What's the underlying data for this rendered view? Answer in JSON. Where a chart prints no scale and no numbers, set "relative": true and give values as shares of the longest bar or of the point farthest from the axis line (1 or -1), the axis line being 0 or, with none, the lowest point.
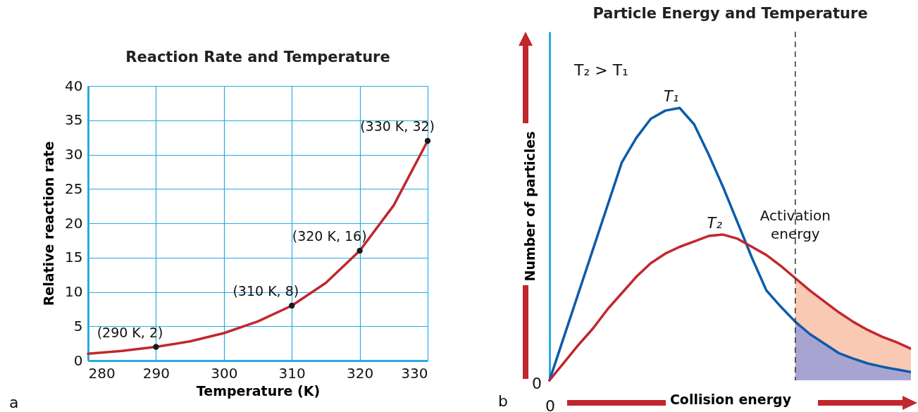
{
  "chart_data": [
    {
      "type": "line",
      "title": "Reaction Rate and Temperature",
      "xlabel": "Temperature (K)",
      "ylabel": "Relative reaction rate",
      "xlim": [
        280,
        330
      ],
      "ylim": [
        0,
        40
      ],
      "xticks": [
        280,
        290,
        300,
        310,
        320,
        330
      ],
      "yticks": [
        0,
        5,
        10,
        15,
        20,
        25,
        30,
        35,
        40
      ],
      "grid": true,
      "series": [
        {
          "type": "line",
          "color": "#c1272d",
          "x": [
            280,
            285,
            290,
            295,
            300,
            305,
            310,
            315,
            320,
            325,
            330
          ],
          "values": [
            1,
            1.4,
            2,
            2.8,
            4,
            5.7,
            8,
            11.3,
            16,
            22.6,
            32
          ]
        },
        {
          "type": "scatter",
          "color": "#1a1a1a",
          "x": [
            290,
            310,
            320,
            330
          ],
          "values": [
            2,
            8,
            16,
            32
          ]
        }
      ],
      "annotations": [
        {
          "text": "(290 K, 2)",
          "x": 290,
          "y": 2
        },
        {
          "text": "(310 K, 8)",
          "x": 310,
          "y": 8
        },
        {
          "text": "(320 K, 16)",
          "x": 320,
          "y": 16
        },
        {
          "text": "(330 K, 32)",
          "x": 330,
          "y": 32
        },
        "a"
      ]
    },
    {
      "type": "line",
      "title": "Particle Energy and Temperature",
      "xlabel": "Collision energy",
      "ylabel": "Number of particles",
      "relative": true,
      "categories": [
        null,
        null,
        null,
        null,
        null,
        null,
        null,
        null,
        null,
        null,
        null,
        null,
        null,
        null,
        null,
        null,
        null,
        null,
        null,
        null,
        null,
        null,
        null,
        null,
        null,
        null
      ],
      "series": [
        {
          "type": "area",
          "color": "#f9c9b3",
          "values": [
            null,
            null,
            null,
            null,
            null,
            null,
            null,
            null,
            null,
            null,
            null,
            null,
            null,
            null,
            null,
            null,
            null,
            0.375,
            0.33,
            0.29,
            0.25,
            0.215,
            0.185,
            0.16,
            0.14,
            0.116
          ]
        },
        {
          "type": "area",
          "color": "#a8a4d2",
          "values": [
            null,
            null,
            null,
            null,
            null,
            null,
            null,
            null,
            null,
            null,
            null,
            null,
            null,
            null,
            null,
            null,
            null,
            0.215,
            0.17,
            0.135,
            0.1,
            0.08,
            0.062,
            0.05,
            0.04,
            0.03
          ]
        },
        {
          "name": "T₁",
          "type": "line",
          "color": "#0b5cab",
          "values": [
            0,
            0.16,
            0.32,
            0.48,
            0.64,
            0.8,
            0.89,
            0.96,
            0.99,
            1,
            0.94,
            0.83,
            0.71,
            0.58,
            0.45,
            0.33,
            0.27,
            0.215,
            0.17,
            0.135,
            0.1,
            0.08,
            0.062,
            0.05,
            0.04,
            0.03
          ]
        },
        {
          "name": "T₂",
          "type": "line",
          "color": "#c1272d",
          "values": [
            0,
            0.065,
            0.13,
            0.19,
            0.26,
            0.32,
            0.38,
            0.43,
            0.465,
            0.49,
            0.51,
            0.53,
            0.535,
            0.52,
            0.49,
            0.46,
            0.42,
            0.375,
            0.33,
            0.29,
            0.25,
            0.215,
            0.185,
            0.16,
            0.14,
            0.116
          ]
        }
      ],
      "ref_lines": [
        {
          "axis": "x",
          "label": "Activation energy",
          "line_style": "dashed",
          "color": "#333333"
        }
      ],
      "annotations": [
        "T₂ > T₁",
        "0",
        "0",
        "b"
      ]
    }
  ]
}
